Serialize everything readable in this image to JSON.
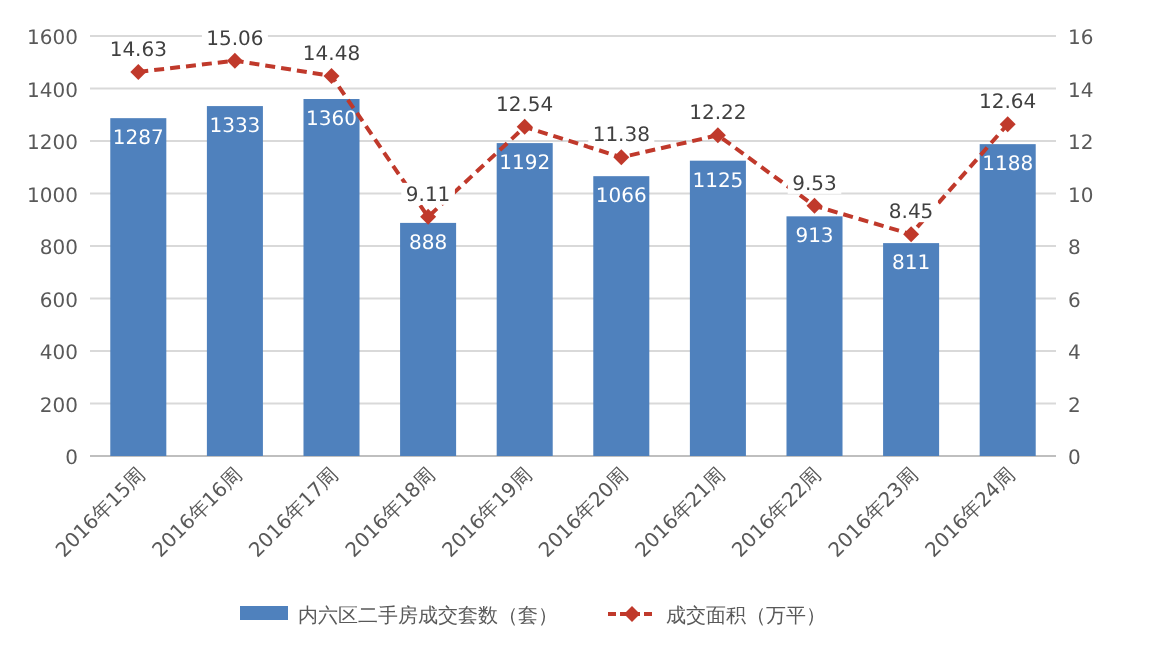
{
  "chart_data": {
    "type": "bar",
    "categories": [
      "2016年15周",
      "2016年16周",
      "2016年17周",
      "2016年18周",
      "2016年19周",
      "2016年20周",
      "2016年21周",
      "2016年22周",
      "2016年23周",
      "2016年24周"
    ],
    "series": [
      {
        "name": "内六区二手房成交套数（套）",
        "color": "#4f81bd",
        "values": [
          1287,
          1333,
          1360,
          888,
          1192,
          1066,
          1125,
          913,
          811,
          1188
        ]
      },
      {
        "name": "成交面积（万平）",
        "color": "#c0392b",
        "type": "line",
        "axis": "y2",
        "marker": "diamond",
        "line_style": "dashed",
        "values": [
          14.63,
          15.06,
          14.48,
          9.11,
          12.54,
          11.38,
          12.22,
          9.53,
          8.45,
          12.64
        ]
      }
    ],
    "ylim": [
      0,
      1600
    ],
    "yticks": [
      0,
      200,
      400,
      600,
      800,
      1000,
      1200,
      1400,
      1600
    ],
    "y2lim": [
      0,
      16
    ],
    "y2ticks": [
      0,
      2,
      4,
      6,
      8,
      10,
      12,
      14,
      16
    ],
    "grid": "y",
    "legend": "bottom",
    "data_labels": true
  }
}
